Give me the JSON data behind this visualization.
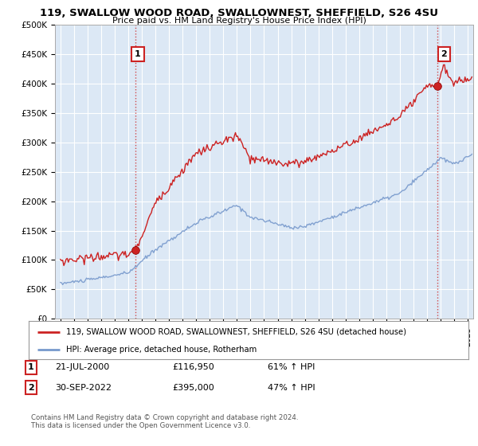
{
  "title": "119, SWALLOW WOOD ROAD, SWALLOWNEST, SHEFFIELD, S26 4SU",
  "subtitle": "Price paid vs. HM Land Registry's House Price Index (HPI)",
  "ylim": [
    0,
    500000
  ],
  "yticks": [
    0,
    50000,
    100000,
    150000,
    200000,
    250000,
    300000,
    350000,
    400000,
    450000,
    500000
  ],
  "ytick_labels": [
    "£0",
    "£50K",
    "£100K",
    "£150K",
    "£200K",
    "£250K",
    "£300K",
    "£350K",
    "£400K",
    "£450K",
    "£500K"
  ],
  "red_line_color": "#cc2222",
  "blue_line_color": "#7799cc",
  "sale1_date_num": 2000.55,
  "sale1_price": 116950,
  "sale1_label": "1",
  "sale2_date_num": 2022.75,
  "sale2_price": 395000,
  "sale2_label": "2",
  "vline_color": "#cc2222",
  "legend_red_label": "119, SWALLOW WOOD ROAD, SWALLOWNEST, SHEFFIELD, S26 4SU (detached house)",
  "legend_blue_label": "HPI: Average price, detached house, Rotherham",
  "footer": "Contains HM Land Registry data © Crown copyright and database right 2024.\nThis data is licensed under the Open Government Licence v3.0.",
  "chart_bg_color": "#dce8f5",
  "fig_bg_color": "#ffffff",
  "grid_color": "#ffffff"
}
